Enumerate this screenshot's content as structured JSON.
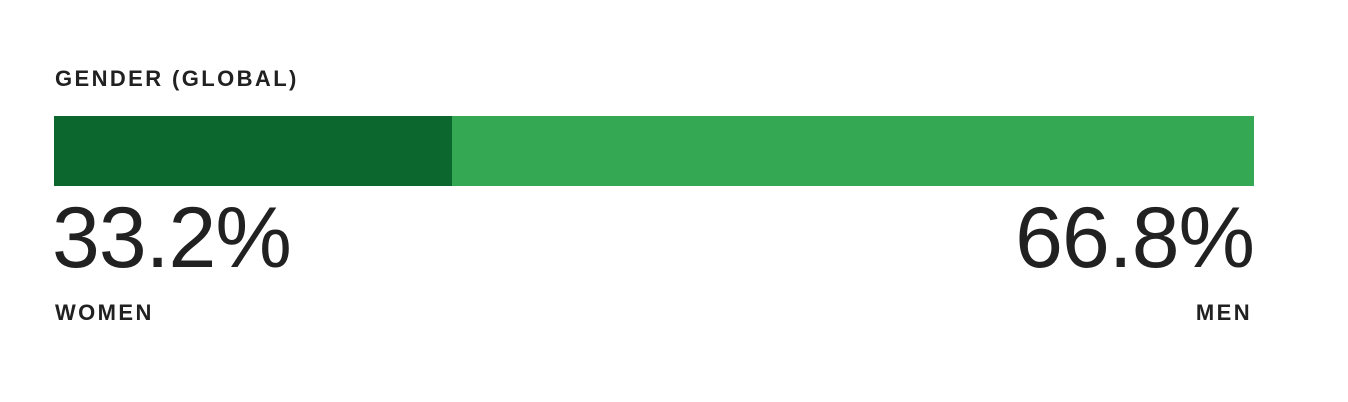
{
  "chart_data": {
    "type": "bar",
    "title": "GENDER (GLOBAL)",
    "categories": [
      "WOMEN",
      "MEN"
    ],
    "values": [
      33.2,
      66.8
    ],
    "value_labels": [
      "33.2%",
      "66.8%"
    ],
    "unit": "%",
    "stacked": true,
    "orientation": "horizontal",
    "colors": [
      "#0b672e",
      "#34a853"
    ]
  }
}
